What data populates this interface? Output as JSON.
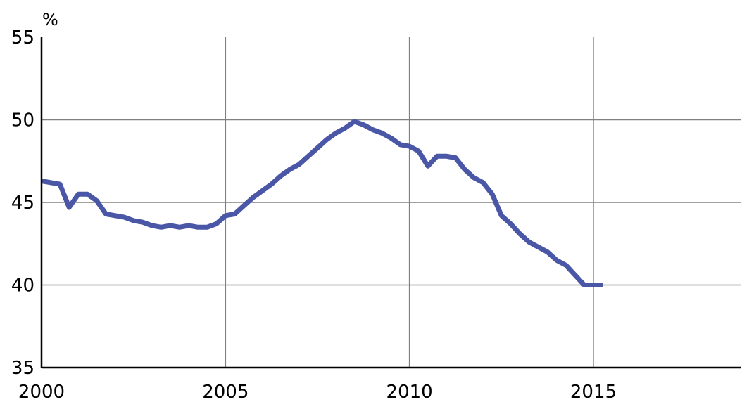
{
  "chart_data": {
    "type": "line",
    "title": "",
    "xlabel": "",
    "ylabel": "",
    "unit_label": "%",
    "xlim": [
      2000,
      2019
    ],
    "ylim": [
      35,
      55
    ],
    "x_ticks": [
      "2000",
      "2005",
      "2010",
      "2015"
    ],
    "y_ticks": [
      "35",
      "40",
      "45",
      "50",
      "55"
    ],
    "grid": true,
    "legend": "none",
    "colors": {
      "line": "#4a56a6",
      "grid": "#808080",
      "axis": "#000000"
    },
    "series": [
      {
        "x": [
          2000.0,
          2000.25,
          2000.5,
          2000.75,
          2001.0,
          2001.25,
          2001.5,
          2001.75,
          2002.0,
          2002.25,
          2002.5,
          2002.75,
          2003.0,
          2003.25,
          2003.5,
          2003.75,
          2004.0,
          2004.25,
          2004.5,
          2004.75,
          2005.0,
          2005.25,
          2005.5,
          2005.75,
          2006.0,
          2006.25,
          2006.5,
          2006.75,
          2007.0,
          2007.25,
          2007.5,
          2007.75,
          2008.0,
          2008.25,
          2008.5,
          2008.75,
          2009.0,
          2009.25,
          2009.5,
          2009.75,
          2010.0,
          2010.25,
          2010.5,
          2010.75,
          2011.0,
          2011.25,
          2011.5,
          2011.75,
          2012.0,
          2012.25,
          2012.5,
          2012.75,
          2013.0,
          2013.25,
          2013.5,
          2013.75,
          2014.0,
          2014.25,
          2014.5,
          2014.75,
          2015.0,
          2015.25
        ],
        "values": [
          46.3,
          46.2,
          46.1,
          44.7,
          45.5,
          45.5,
          45.1,
          44.3,
          44.2,
          44.1,
          43.9,
          43.8,
          43.6,
          43.5,
          43.6,
          43.5,
          43.6,
          43.5,
          43.5,
          43.7,
          44.2,
          44.3,
          44.8,
          45.3,
          45.7,
          46.1,
          46.6,
          47.0,
          47.3,
          47.8,
          48.3,
          48.8,
          49.2,
          49.5,
          49.9,
          49.7,
          49.4,
          49.2,
          48.9,
          48.5,
          48.4,
          48.1,
          47.2,
          47.8,
          47.8,
          47.7,
          47.0,
          46.5,
          46.2,
          45.5,
          44.2,
          43.7,
          43.1,
          42.6,
          42.3,
          42.0,
          41.5,
          41.2,
          40.6,
          40.0,
          40.0,
          40.0
        ]
      }
    ]
  }
}
